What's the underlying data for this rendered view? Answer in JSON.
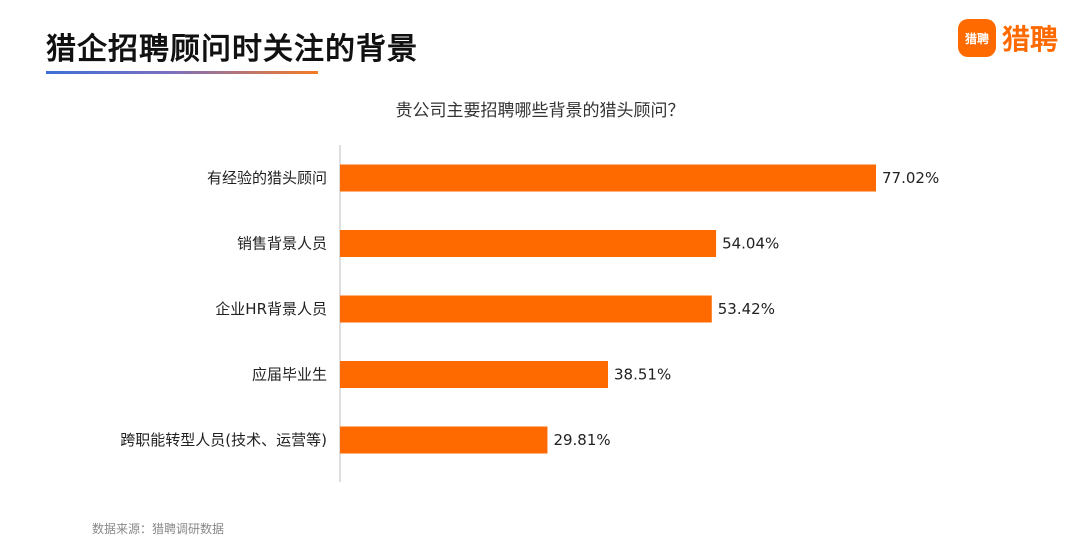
{
  "header": {
    "title": "猎企招聘顾问时关注的背景",
    "logo_badge_text": "猎聘",
    "logo_text": "猎聘"
  },
  "colors": {
    "bar": "#ff6a00",
    "brand": "#ff6a00"
  },
  "footnote": "数据来源：猎聘调研数据",
  "chart_data": {
    "type": "bar",
    "orientation": "horizontal",
    "title": "贵公司主要招聘哪些背景的猎头顾问？",
    "categories": [
      "有经验的猎头顾问",
      "销售背景人员",
      "企业HR背景人员",
      "应届毕业生",
      "跨职能转型人员(技术、运营等)"
    ],
    "values": [
      77.02,
      54.04,
      53.42,
      38.51,
      29.81
    ],
    "value_labels": [
      "77.02%",
      "54.04%",
      "53.42%",
      "38.51%",
      "29.81%"
    ],
    "xlabel": "",
    "ylabel": "",
    "xlim": [
      0,
      100
    ],
    "grid": false,
    "legend": "none"
  }
}
